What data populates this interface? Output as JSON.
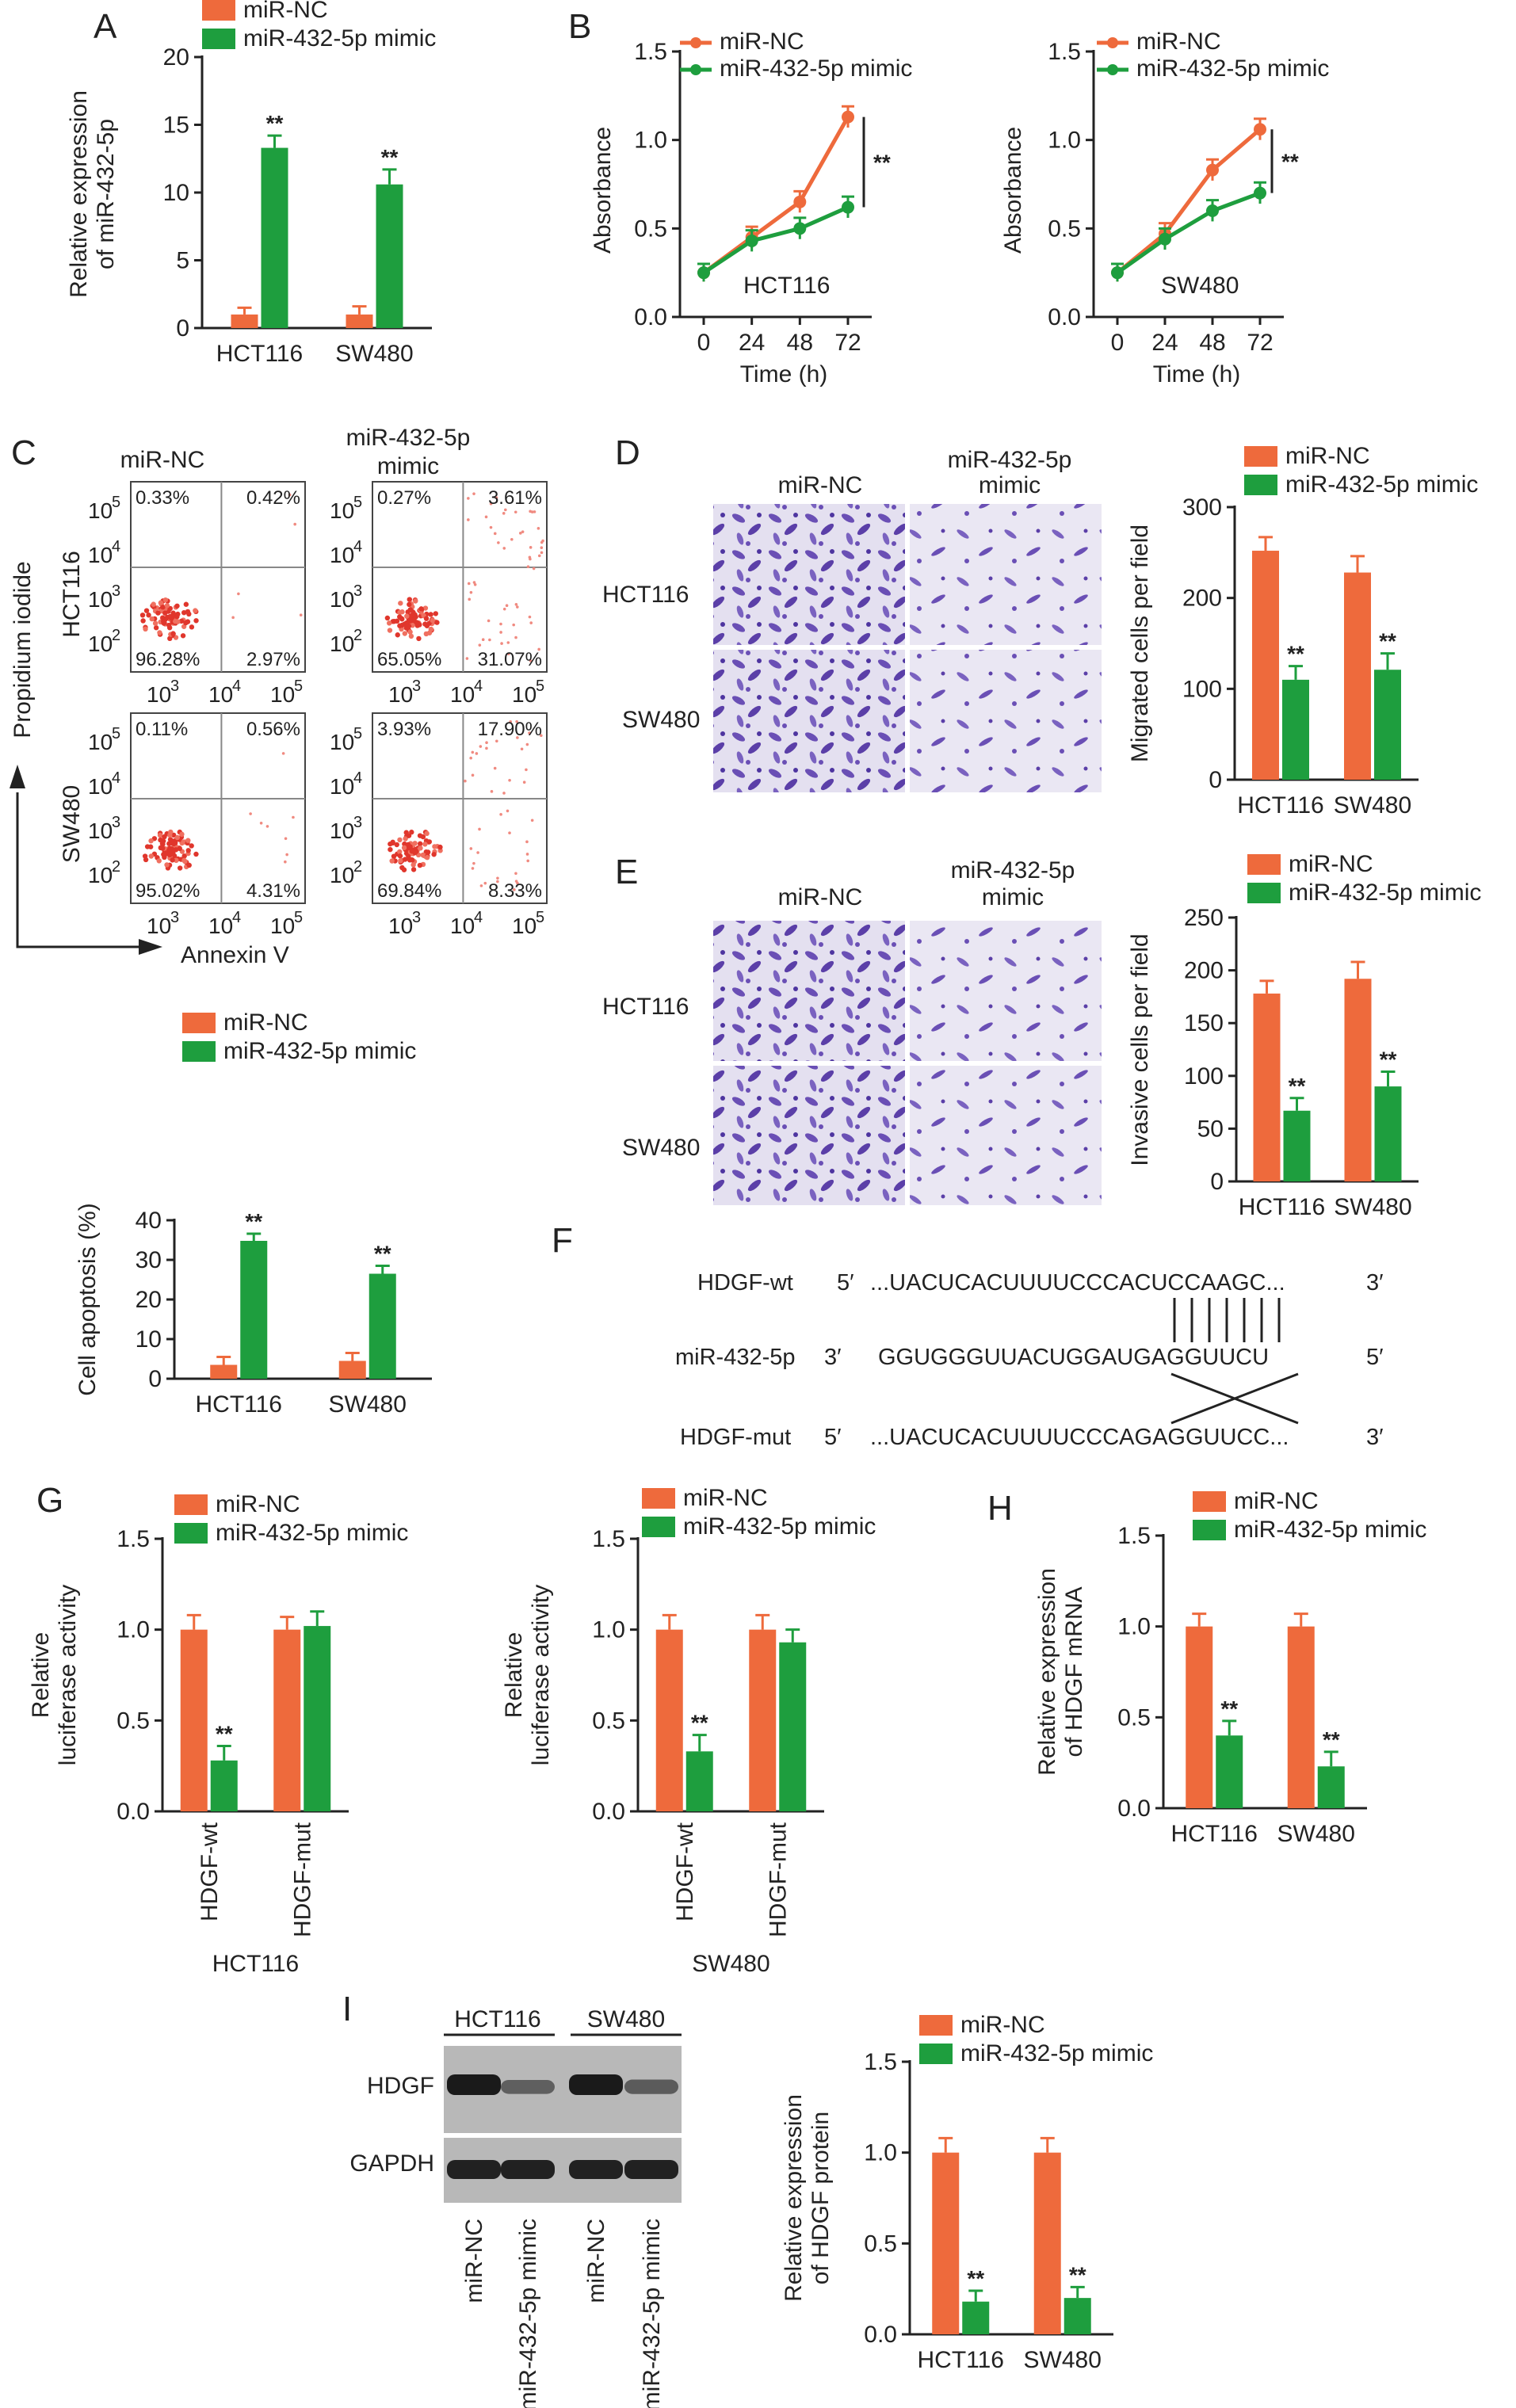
{
  "colors": {
    "nc": "#EE6A3C",
    "mimic": "#1E9E3E",
    "stain": "#6A4FB5",
    "stain_bg": "#E6E2F2"
  },
  "legend": {
    "nc": "miR-NC",
    "mimic": "miR-432-5p mimic",
    "mimic_line1": "miR-432-5p",
    "mimic_line2": "mimic"
  },
  "cells": {
    "hct116": "HCT116",
    "sw480": "SW480"
  },
  "sig": "**",
  "panels": {
    "A": {
      "label": "A"
    },
    "B": {
      "label": "B"
    },
    "C": {
      "label": "C"
    },
    "D": {
      "label": "D"
    },
    "E": {
      "label": "E"
    },
    "F": {
      "label": "F"
    },
    "G": {
      "label": "G"
    },
    "H": {
      "label": "H"
    },
    "I": {
      "label": "I"
    }
  },
  "flow": {
    "ylabel": "Propidium iodide",
    "xlabel": "Annexin V",
    "ticks_x": [
      "10",
      "10",
      "10"
    ],
    "ticks_y": [
      "10",
      "10",
      "10",
      "10"
    ],
    "tick_exp_x": [
      "3",
      "4",
      "5"
    ],
    "tick_exp_y": [
      "5",
      "4",
      "3",
      "2"
    ],
    "plots": [
      {
        "row": "HCT116",
        "col": "miR-NC",
        "q": [
          "0.33%",
          "0.42%",
          "96.28%",
          "2.97%"
        ]
      },
      {
        "row": "HCT116",
        "col": "mimic",
        "q": [
          "0.27%",
          "3.61%",
          "65.05%",
          "31.07%"
        ]
      },
      {
        "row": "SW480",
        "col": "miR-NC",
        "q": [
          "0.11%",
          "0.56%",
          "95.02%",
          "4.31%"
        ]
      },
      {
        "row": "SW480",
        "col": "mimic",
        "q": [
          "3.93%",
          "17.90%",
          "69.84%",
          "8.33%"
        ]
      }
    ]
  },
  "sequences": {
    "wt_name": "HDGF-wt",
    "wt_5": "5′",
    "wt_seq": "...UACUCACUUUUCCCACUCCAAGC...",
    "wt_3": "3′",
    "mir_name": "miR-432-5p",
    "mir_3": "3′",
    "mir_seq": "GGUGGGUUACUGGAUGAGGUUCU",
    "mir_5": "5′",
    "mut_name": "HDGF-mut",
    "mut_5": "5′",
    "mut_seq": "...UACUCACUUUUCCCAGAGGUUCC...",
    "mut_3": "3′"
  },
  "western": {
    "rows": [
      "HDGF",
      "GAPDH"
    ],
    "groups": [
      "HCT116",
      "SW480"
    ],
    "lanes": [
      "miR-NC",
      "miR-432-5p mimic",
      "miR-NC",
      "miR-432-5p mimic"
    ],
    "hdgf_intensity": [
      1.0,
      0.3,
      1.0,
      0.35
    ],
    "gapdh_intensity": [
      1.0,
      1.0,
      1.0,
      1.0
    ]
  },
  "chart_data": [
    {
      "id": "A",
      "type": "bar",
      "categories": [
        "HCT116",
        "SW480"
      ],
      "series": [
        {
          "name": "miR-NC",
          "values": [
            1.0,
            1.0
          ],
          "err": [
            0.5,
            0.6
          ]
        },
        {
          "name": "miR-432-5p mimic",
          "values": [
            13.3,
            10.6
          ],
          "err": [
            0.9,
            1.1
          ]
        }
      ],
      "ylabel": "Relative expression|of miR-432-5p",
      "ylim": [
        0,
        20
      ],
      "yticks": [
        "0",
        "5",
        "10",
        "15",
        "20"
      ],
      "stars": [
        true,
        true
      ]
    },
    {
      "id": "B1",
      "type": "line",
      "x": [
        "0",
        "24",
        "48",
        "72"
      ],
      "annotation": "HCT116",
      "series": [
        {
          "name": "miR-NC",
          "values": [
            0.25,
            0.45,
            0.65,
            1.13
          ],
          "err": [
            0.05,
            0.06,
            0.06,
            0.06
          ]
        },
        {
          "name": "miR-432-5p mimic",
          "values": [
            0.25,
            0.43,
            0.5,
            0.62
          ],
          "err": [
            0.05,
            0.06,
            0.06,
            0.06
          ]
        }
      ],
      "xlabel": "Time (h)",
      "ylabel": "Absorbance",
      "ylim": [
        0,
        1.5
      ],
      "yticks": [
        "0.0",
        "0.5",
        "1.0",
        "1.5"
      ]
    },
    {
      "id": "B2",
      "type": "line",
      "x": [
        "0",
        "24",
        "48",
        "72"
      ],
      "annotation": "SW480",
      "series": [
        {
          "name": "miR-NC",
          "values": [
            0.25,
            0.47,
            0.83,
            1.06
          ],
          "err": [
            0.05,
            0.06,
            0.06,
            0.06
          ]
        },
        {
          "name": "miR-432-5p mimic",
          "values": [
            0.25,
            0.44,
            0.6,
            0.7
          ],
          "err": [
            0.05,
            0.06,
            0.06,
            0.06
          ]
        }
      ],
      "xlabel": "Time (h)",
      "ylabel": "Absorbance",
      "ylim": [
        0,
        1.5
      ],
      "yticks": [
        "0.0",
        "0.5",
        "1.0",
        "1.5"
      ]
    },
    {
      "id": "C",
      "type": "bar",
      "categories": [
        "HCT116",
        "SW480"
      ],
      "series": [
        {
          "name": "miR-NC",
          "values": [
            3.5,
            4.5
          ],
          "err": [
            2.0,
            2.0
          ]
        },
        {
          "name": "miR-432-5p mimic",
          "values": [
            34.8,
            26.5
          ],
          "err": [
            1.8,
            2.0
          ]
        }
      ],
      "ylabel": "Cell apoptosis (%)",
      "ylim": [
        0,
        40
      ],
      "yticks": [
        "0",
        "10",
        "20",
        "30",
        "40"
      ],
      "stars": [
        true,
        true
      ]
    },
    {
      "id": "D",
      "type": "bar",
      "categories": [
        "HCT116",
        "SW480"
      ],
      "series": [
        {
          "name": "miR-NC",
          "values": [
            252,
            228
          ],
          "err": [
            15,
            18
          ]
        },
        {
          "name": "miR-432-5p mimic",
          "values": [
            110,
            121
          ],
          "err": [
            15,
            18
          ]
        }
      ],
      "ylabel": "Migrated cells per field",
      "ylim": [
        0,
        300
      ],
      "yticks": [
        "0",
        "100",
        "200",
        "300"
      ],
      "stars": [
        true,
        true
      ]
    },
    {
      "id": "E",
      "type": "bar",
      "categories": [
        "HCT116",
        "SW480"
      ],
      "series": [
        {
          "name": "miR-NC",
          "values": [
            178,
            192
          ],
          "err": [
            12,
            16
          ]
        },
        {
          "name": "miR-432-5p mimic",
          "values": [
            67,
            90
          ],
          "err": [
            12,
            14
          ]
        }
      ],
      "ylabel": "Invasive cells per field",
      "ylim": [
        0,
        250
      ],
      "yticks": [
        "0",
        "50",
        "100",
        "150",
        "200",
        "250"
      ],
      "stars": [
        true,
        true
      ]
    },
    {
      "id": "G1",
      "type": "bar",
      "categories": [
        "HDGF-wt",
        "HDGF-mut"
      ],
      "group_label": "HCT116",
      "series": [
        {
          "name": "miR-NC",
          "values": [
            1.0,
            1.0
          ],
          "err": [
            0.08,
            0.07
          ]
        },
        {
          "name": "miR-432-5p mimic",
          "values": [
            0.28,
            1.02
          ],
          "err": [
            0.08,
            0.08
          ]
        }
      ],
      "ylabel": "Relative|luciferase activity",
      "ylim": [
        0,
        1.5
      ],
      "yticks": [
        "0.0",
        "0.5",
        "1.0",
        "1.5"
      ],
      "stars": [
        true,
        false
      ]
    },
    {
      "id": "G2",
      "type": "bar",
      "categories": [
        "HDGF-wt",
        "HDGF-mut"
      ],
      "group_label": "SW480",
      "series": [
        {
          "name": "miR-NC",
          "values": [
            1.0,
            1.0
          ],
          "err": [
            0.08,
            0.08
          ]
        },
        {
          "name": "miR-432-5p mimic",
          "values": [
            0.33,
            0.93
          ],
          "err": [
            0.09,
            0.07
          ]
        }
      ],
      "ylabel": "Relative|luciferase activity",
      "ylim": [
        0,
        1.5
      ],
      "yticks": [
        "0.0",
        "0.5",
        "1.0",
        "1.5"
      ],
      "stars": [
        true,
        false
      ]
    },
    {
      "id": "H",
      "type": "bar",
      "categories": [
        "HCT116",
        "SW480"
      ],
      "series": [
        {
          "name": "miR-NC",
          "values": [
            1.0,
            1.0
          ],
          "err": [
            0.07,
            0.07
          ]
        },
        {
          "name": "miR-432-5p mimic",
          "values": [
            0.4,
            0.23
          ],
          "err": [
            0.08,
            0.08
          ]
        }
      ],
      "ylabel": "Relative expression|of HDGF mRNA",
      "ylim": [
        0,
        1.5
      ],
      "yticks": [
        "0.0",
        "0.5",
        "1.0",
        "1.5"
      ],
      "stars": [
        true,
        true
      ]
    },
    {
      "id": "I",
      "type": "bar",
      "categories": [
        "HCT116",
        "SW480"
      ],
      "series": [
        {
          "name": "miR-NC",
          "values": [
            1.0,
            1.0
          ],
          "err": [
            0.08,
            0.08
          ]
        },
        {
          "name": "miR-432-5p mimic",
          "values": [
            0.18,
            0.2
          ],
          "err": [
            0.06,
            0.06
          ]
        }
      ],
      "ylabel": "Relative expression|of HDGF protein",
      "ylim": [
        0,
        1.5
      ],
      "yticks": [
        "0.0",
        "0.5",
        "1.0",
        "1.5"
      ],
      "stars": [
        true,
        true
      ]
    }
  ]
}
